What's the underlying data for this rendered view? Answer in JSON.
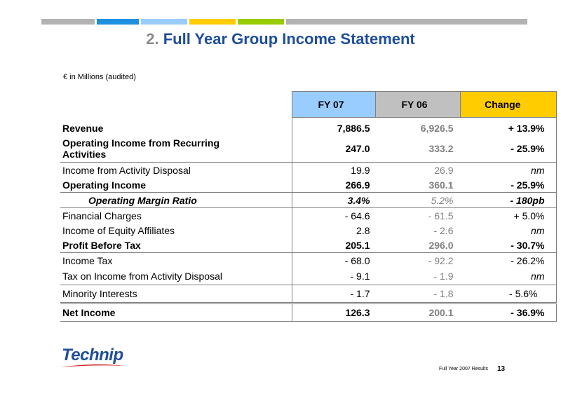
{
  "topbar_colors": [
    "#b3b3b3",
    "#1e90e0",
    "#99ccff",
    "#ffcc00",
    "#99cc00",
    "#b3b3b3"
  ],
  "title": {
    "number": "2.",
    "text": "Full Year Group Income Statement"
  },
  "subtitle": "€ in Millions (audited)",
  "columns": {
    "fy07": "FY 07",
    "fy06": "FY 06",
    "change": "Change"
  },
  "rows": [
    {
      "label": "Revenue",
      "fy07": "7,886.5",
      "fy06": "6,926.5",
      "change": "+ 13.9%",
      "style": "bold"
    },
    {
      "label": "Operating Income from Recurring Activities",
      "fy07": "247.0",
      "fy06": "333.2",
      "change": "- 25.9%",
      "style": "bold"
    },
    {
      "label": "Income from Activity Disposal",
      "fy07": "19.9",
      "fy06": "26.9",
      "change": "nm",
      "style": "normal"
    },
    {
      "label": "Operating Income",
      "fy07": "266.9",
      "fy06": "360.1",
      "change": "- 25.9%",
      "style": "bold"
    },
    {
      "label": "Operating Margin Ratio",
      "fy07": "3.4%",
      "fy06": "5.2%",
      "change": "- 180pb",
      "style": "italic"
    },
    {
      "label": "Financial Charges",
      "fy07": "- 64.6",
      "fy06": "- 61.5",
      "change": "+ 5.0%",
      "style": "normal"
    },
    {
      "label": "Income of Equity Affiliates",
      "fy07": "2.8",
      "fy06": "- 2.6",
      "change": "nm",
      "style": "normal"
    },
    {
      "label": "Profit Before Tax",
      "fy07": "205.1",
      "fy06": "296.0",
      "change": "- 30.7%",
      "style": "bold"
    },
    {
      "label": "Income Tax",
      "fy07": "- 68.0",
      "fy06": "- 92.2",
      "change": "- 26.2%",
      "style": "normal"
    },
    {
      "label": "Tax on Income from Activity Disposal",
      "fy07": "- 9.1",
      "fy06": "- 1.9",
      "change": "nm",
      "style": "normal"
    },
    {
      "label": "Minority Interests",
      "fy07": "- 1.7",
      "fy06": "- 1.8",
      "change": "- 5.6%",
      "style": "normal"
    },
    {
      "label": "Net Income",
      "fy07": "126.3",
      "fy06": "200.1",
      "change": "- 36.9%",
      "style": "bold"
    }
  ],
  "logo_text": "Technip",
  "footer": {
    "text": "Full Year 2007 Results",
    "page": "13"
  }
}
